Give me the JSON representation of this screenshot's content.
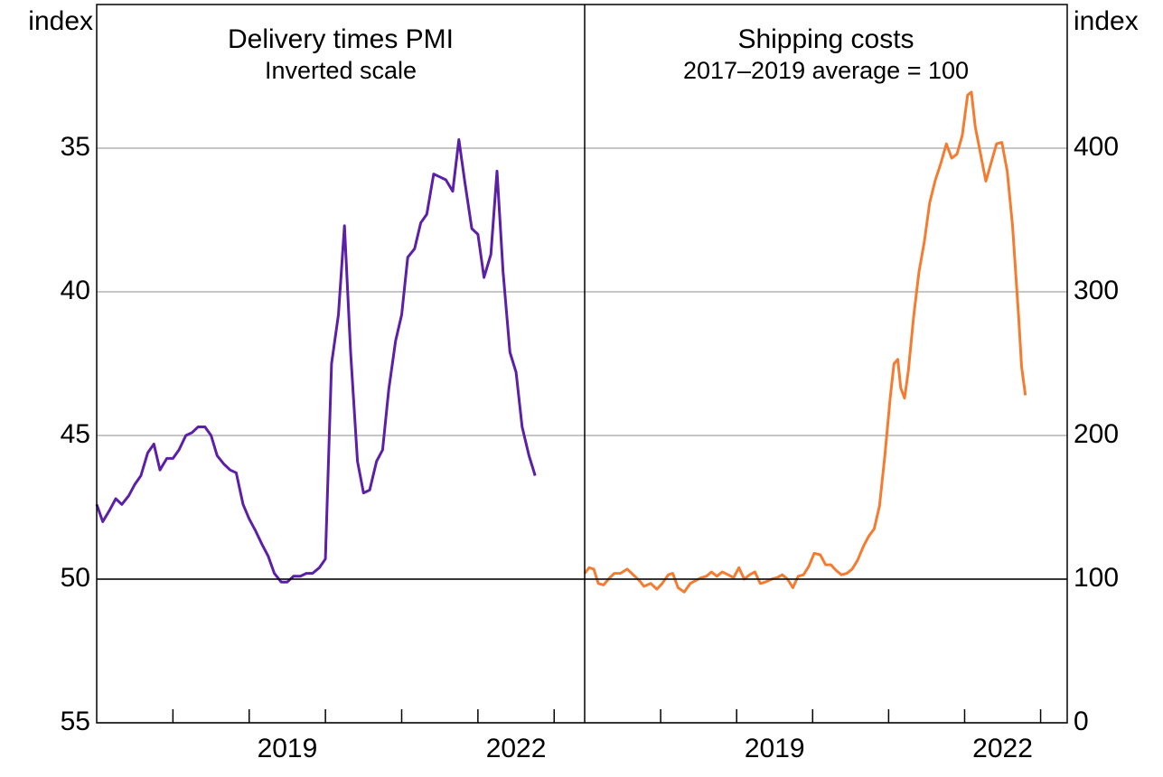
{
  "chart_data": [
    {
      "type": "line",
      "title": "Delivery times PMI",
      "subtitle": "Inverted scale",
      "y_label": "index",
      "y_axis_side": "left",
      "y_inverted": true,
      "color": "#5b1fa8",
      "x": [
        2017.0,
        2017.08,
        2017.17,
        2017.25,
        2017.33,
        2017.42,
        2017.5,
        2017.58,
        2017.67,
        2017.75,
        2017.83,
        2017.92,
        2018.0,
        2018.08,
        2018.17,
        2018.25,
        2018.33,
        2018.42,
        2018.5,
        2018.58,
        2018.67,
        2018.75,
        2018.83,
        2018.92,
        2019.0,
        2019.08,
        2019.17,
        2019.25,
        2019.33,
        2019.42,
        2019.5,
        2019.58,
        2019.67,
        2019.75,
        2019.83,
        2019.92,
        2020.0,
        2020.08,
        2020.17,
        2020.25,
        2020.33,
        2020.42,
        2020.5,
        2020.58,
        2020.67,
        2020.75,
        2020.83,
        2020.92,
        2021.0,
        2021.08,
        2021.17,
        2021.25,
        2021.33,
        2021.42,
        2021.5,
        2021.58,
        2021.67,
        2021.75,
        2021.83,
        2021.92,
        2022.0,
        2022.08,
        2022.17,
        2022.25,
        2022.33,
        2022.42,
        2022.5,
        2022.58,
        2022.67,
        2022.75
      ],
      "values": [
        47.4,
        48.0,
        47.6,
        47.2,
        47.4,
        47.1,
        46.7,
        46.4,
        45.6,
        45.3,
        46.2,
        45.8,
        45.8,
        45.5,
        45.0,
        44.9,
        44.7,
        44.7,
        45.0,
        45.7,
        46.0,
        46.2,
        46.3,
        47.4,
        47.9,
        48.3,
        48.8,
        49.2,
        49.8,
        50.1,
        50.1,
        49.9,
        49.9,
        49.8,
        49.8,
        49.6,
        49.3,
        42.5,
        40.8,
        37.7,
        42.1,
        45.9,
        47.0,
        46.9,
        45.9,
        45.5,
        43.4,
        41.7,
        40.8,
        38.8,
        38.5,
        37.6,
        37.3,
        35.9,
        36.0,
        36.1,
        36.5,
        34.7,
        36.2,
        37.8,
        38.0,
        39.5,
        38.7,
        35.8,
        39.3,
        42.1,
        42.8,
        44.7,
        45.7,
        46.4
      ],
      "xlim": [
        2017,
        2023.4
      ],
      "xticks": [
        2018,
        2019,
        2020,
        2021,
        2022,
        2023
      ],
      "xlabels": [
        2019,
        2022
      ],
      "ylim": [
        30,
        55
      ],
      "yticks": [
        35,
        40,
        45,
        50,
        55
      ],
      "reference_line": 50,
      "grid": true
    },
    {
      "type": "line",
      "title": "Shipping costs",
      "subtitle": "2017–2019 average = 100",
      "y_label": "index",
      "y_axis_side": "right",
      "y_inverted": false,
      "color": "#f47c30",
      "x": [
        2017.0,
        2017.06,
        2017.12,
        2017.18,
        2017.25,
        2017.33,
        2017.39,
        2017.47,
        2017.56,
        2017.64,
        2017.72,
        2017.78,
        2017.87,
        2017.95,
        2018.02,
        2018.1,
        2018.16,
        2018.23,
        2018.31,
        2018.39,
        2018.46,
        2018.53,
        2018.6,
        2018.67,
        2018.74,
        2018.81,
        2018.89,
        2018.96,
        2019.03,
        2019.1,
        2019.17,
        2019.24,
        2019.31,
        2019.38,
        2019.46,
        2019.53,
        2019.6,
        2019.67,
        2019.74,
        2019.81,
        2019.88,
        2019.95,
        2020.02,
        2020.1,
        2020.17,
        2020.24,
        2020.31,
        2020.38,
        2020.45,
        2020.52,
        2020.59,
        2020.67,
        2020.74,
        2020.81,
        2020.88,
        2020.95,
        2021.02,
        2021.07,
        2021.12,
        2021.16,
        2021.21,
        2021.26,
        2021.33,
        2021.4,
        2021.47,
        2021.54,
        2021.61,
        2021.69,
        2021.76,
        2021.83,
        2021.9,
        2021.97,
        2022.04,
        2022.09,
        2022.14,
        2022.21,
        2022.28,
        2022.35,
        2022.42,
        2022.49,
        2022.56,
        2022.63,
        2022.71,
        2022.75,
        2022.8
      ],
      "values": [
        104,
        108,
        107,
        97,
        96,
        101,
        104,
        104,
        107,
        103,
        99,
        95,
        97,
        93,
        97,
        103,
        104,
        94,
        91,
        97,
        99,
        101,
        102,
        105,
        102,
        105,
        103,
        101,
        108,
        100,
        103,
        105,
        97,
        98,
        100,
        101,
        103,
        100,
        94,
        102,
        103,
        109,
        118,
        117,
        110,
        110,
        106,
        103,
        104,
        107,
        113,
        123,
        130,
        135,
        151,
        186,
        226,
        250,
        253,
        233,
        226,
        245,
        283,
        314,
        335,
        362,
        377,
        390,
        403,
        393,
        396,
        409,
        437,
        439,
        415,
        396,
        377,
        390,
        403,
        404,
        384,
        346,
        283,
        248,
        228
      ],
      "xlim": [
        2017,
        2023.35
      ],
      "xticks": [
        2018,
        2019,
        2020,
        2021,
        2022,
        2023
      ],
      "xlabels": [
        2019,
        2022
      ],
      "ylim": [
        0,
        500
      ],
      "yticks": [
        0,
        100,
        200,
        300,
        400
      ],
      "reference_line": 100,
      "grid": true
    }
  ]
}
